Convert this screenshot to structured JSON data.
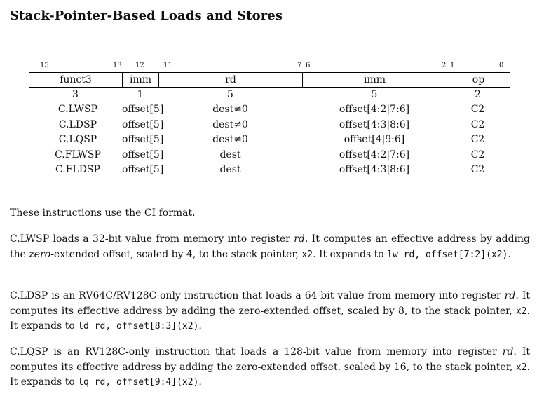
{
  "title": "Stack-Pointer-Based Loads and Stores",
  "bit_numbers": [
    "15",
    "13",
    "12",
    "11",
    "7",
    "6",
    "2",
    "1",
    "0"
  ],
  "fields": [
    "funct3",
    "imm",
    "rd",
    "imm",
    "op"
  ],
  "widths": [
    "3",
    "1",
    "5",
    "5",
    "2"
  ],
  "rows": [
    [
      "C.LWSP",
      "offset[5]",
      "dest≠0",
      "offset[4:2|7:6]",
      "C2"
    ],
    [
      "C.LDSP",
      "offset[5]",
      "dest≠0",
      "offset[4:3|8:6]",
      "C2"
    ],
    [
      "C.LQSP",
      "offset[5]",
      "dest≠0",
      "offset[4|9:6]",
      "C2"
    ],
    [
      "C.FLWSP",
      "offset[5]",
      "dest",
      "offset[4:2|7:6]",
      "C2"
    ],
    [
      "C.FLDSP",
      "offset[5]",
      "dest",
      "offset[4:3|8:6]",
      "C2"
    ]
  ],
  "p1": "These instructions use the CI format.",
  "p2": {
    "a": "C.LWSP loads a 32-bit value from memory into register ",
    "rd": "rd",
    "b": ". It computes an effective address by adding the ",
    "zero": "zero",
    "c": "-extended offset, scaled by 4, to the stack pointer, ",
    "x2": "x2",
    "d": ". It expands to ",
    "code": "lw rd, offset[7:2](x2)",
    "e": "."
  },
  "p3": {
    "a": "C.LDSP is an RV64C/RV128C-only instruction that loads a 64-bit value from memory into register ",
    "rd": "rd",
    "b": ". It computes its effective address by adding the zero-extended offset, scaled by 8, to the stack pointer, ",
    "x2": "x2",
    "c": ". It expands to ",
    "code": "ld rd, offset[8:3](x2)",
    "d": "."
  },
  "p4": {
    "a": "C.LQSP is an RV128C-only instruction that loads a 128-bit value from memory into register ",
    "rd": "rd",
    "b": ". It computes its effective address by adding the zero-extended offset, scaled by 16, to the stack pointer, ",
    "x2": "x2",
    "c": ". It expands to ",
    "code": "lq rd, offset[9:4](x2)",
    "d": "."
  }
}
